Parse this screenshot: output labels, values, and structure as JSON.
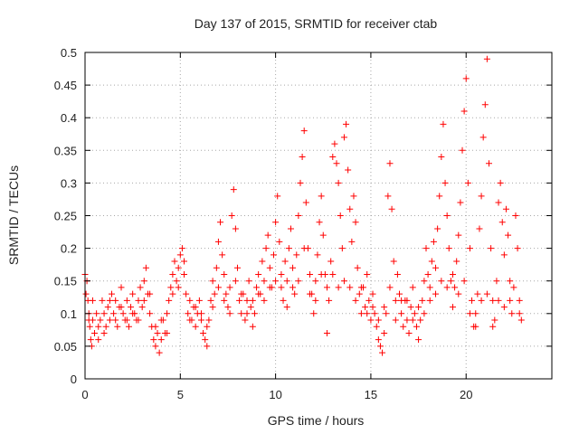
{
  "chart_data": {
    "type": "scatter",
    "title": "Day 137 of 2015, SRMTID for receiver ctab",
    "xlabel": "GPS time / hours",
    "ylabel": "SRMTID / TECUs",
    "xlim": [
      0,
      24.5
    ],
    "ylim": [
      0,
      0.5
    ],
    "xticks": [
      0,
      5,
      10,
      15,
      20
    ],
    "xtick_labels": [
      "0",
      "5",
      "10",
      "15",
      "20"
    ],
    "yticks": [
      0,
      0.05,
      0.1,
      0.15,
      0.2,
      0.25,
      0.3,
      0.35,
      0.4,
      0.45,
      0.5
    ],
    "ytick_labels": [
      "0",
      "0.05",
      "0.1",
      "0.15",
      "0.2",
      "0.25",
      "0.3",
      "0.35",
      "0.4",
      "0.45",
      "0.5"
    ],
    "grid": true,
    "marker": "+",
    "marker_color": "#ff0000",
    "series": [
      {
        "name": "SRMTID",
        "points": [
          [
            0.0,
            0.16
          ],
          [
            0.05,
            0.13
          ],
          [
            0.1,
            0.15
          ],
          [
            0.15,
            0.12
          ],
          [
            0.2,
            0.1
          ],
          [
            0.25,
            0.08
          ],
          [
            0.3,
            0.06
          ],
          [
            0.35,
            0.05
          ],
          [
            0.4,
            0.09
          ],
          [
            0.5,
            0.07
          ],
          [
            0.6,
            0.1
          ],
          [
            0.7,
            0.06
          ],
          [
            0.8,
            0.09
          ],
          [
            0.9,
            0.12
          ],
          [
            1.0,
            0.1
          ],
          [
            1.1,
            0.08
          ],
          [
            1.2,
            0.11
          ],
          [
            1.3,
            0.09
          ],
          [
            1.4,
            0.13
          ],
          [
            1.5,
            0.1
          ],
          [
            1.6,
            0.12
          ],
          [
            1.7,
            0.08
          ],
          [
            1.8,
            0.11
          ],
          [
            1.9,
            0.14
          ],
          [
            2.0,
            0.1
          ],
          [
            2.1,
            0.09
          ],
          [
            2.2,
            0.12
          ],
          [
            2.3,
            0.08
          ],
          [
            2.4,
            0.11
          ],
          [
            2.5,
            0.13
          ],
          [
            2.6,
            0.1
          ],
          [
            2.7,
            0.09
          ],
          [
            2.8,
            0.12
          ],
          [
            2.9,
            0.14
          ],
          [
            3.0,
            0.11
          ],
          [
            3.1,
            0.15
          ],
          [
            3.2,
            0.17
          ],
          [
            3.3,
            0.13
          ],
          [
            3.4,
            0.1
          ],
          [
            3.5,
            0.08
          ],
          [
            3.6,
            0.06
          ],
          [
            3.7,
            0.05
          ],
          [
            3.8,
            0.07
          ],
          [
            3.9,
            0.04
          ],
          [
            4.0,
            0.06
          ],
          [
            4.1,
            0.09
          ],
          [
            4.2,
            0.07
          ],
          [
            4.3,
            0.1
          ],
          [
            4.4,
            0.12
          ],
          [
            4.5,
            0.14
          ],
          [
            4.6,
            0.16
          ],
          [
            4.7,
            0.18
          ],
          [
            4.8,
            0.15
          ],
          [
            4.9,
            0.17
          ],
          [
            5.0,
            0.19
          ],
          [
            5.1,
            0.2
          ],
          [
            5.2,
            0.16
          ],
          [
            5.3,
            0.13
          ],
          [
            5.4,
            0.1
          ],
          [
            5.5,
            0.12
          ],
          [
            5.6,
            0.09
          ],
          [
            5.7,
            0.11
          ],
          [
            5.8,
            0.08
          ],
          [
            5.9,
            0.1
          ],
          [
            6.0,
            0.12
          ],
          [
            6.1,
            0.09
          ],
          [
            6.2,
            0.07
          ],
          [
            6.3,
            0.06
          ],
          [
            6.4,
            0.05
          ],
          [
            6.5,
            0.09
          ],
          [
            6.6,
            0.12
          ],
          [
            6.7,
            0.15
          ],
          [
            6.8,
            0.13
          ],
          [
            6.9,
            0.17
          ],
          [
            7.0,
            0.21
          ],
          [
            7.1,
            0.24
          ],
          [
            7.2,
            0.19
          ],
          [
            7.3,
            0.16
          ],
          [
            7.4,
            0.13
          ],
          [
            7.5,
            0.11
          ],
          [
            7.6,
            0.14
          ],
          [
            7.7,
            0.25
          ],
          [
            7.8,
            0.29
          ],
          [
            7.9,
            0.23
          ],
          [
            8.0,
            0.17
          ],
          [
            8.1,
            0.12
          ],
          [
            8.2,
            0.1
          ],
          [
            8.3,
            0.13
          ],
          [
            8.4,
            0.09
          ],
          [
            8.5,
            0.12
          ],
          [
            8.6,
            0.15
          ],
          [
            8.7,
            0.11
          ],
          [
            8.8,
            0.08
          ],
          [
            8.9,
            0.1
          ],
          [
            9.0,
            0.14
          ],
          [
            9.1,
            0.16
          ],
          [
            9.2,
            0.13
          ],
          [
            9.3,
            0.18
          ],
          [
            9.4,
            0.15
          ],
          [
            9.5,
            0.2
          ],
          [
            9.6,
            0.22
          ],
          [
            9.7,
            0.17
          ],
          [
            9.8,
            0.14
          ],
          [
            9.9,
            0.19
          ],
          [
            10.0,
            0.24
          ],
          [
            10.1,
            0.28
          ],
          [
            10.2,
            0.21
          ],
          [
            10.3,
            0.16
          ],
          [
            10.4,
            0.12
          ],
          [
            10.5,
            0.18
          ],
          [
            10.6,
            0.15
          ],
          [
            10.7,
            0.2
          ],
          [
            10.8,
            0.23
          ],
          [
            10.9,
            0.17
          ],
          [
            11.0,
            0.13
          ],
          [
            11.1,
            0.19
          ],
          [
            11.2,
            0.25
          ],
          [
            11.3,
            0.3
          ],
          [
            11.4,
            0.34
          ],
          [
            11.5,
            0.38
          ],
          [
            11.6,
            0.27
          ],
          [
            11.7,
            0.2
          ],
          [
            11.8,
            0.16
          ],
          [
            11.9,
            0.13
          ],
          [
            12.0,
            0.1
          ],
          [
            12.1,
            0.15
          ],
          [
            12.2,
            0.19
          ],
          [
            12.3,
            0.24
          ],
          [
            12.4,
            0.28
          ],
          [
            12.5,
            0.22
          ],
          [
            12.6,
            0.16
          ],
          [
            12.7,
            0.07
          ],
          [
            12.8,
            0.12
          ],
          [
            12.9,
            0.18
          ],
          [
            13.0,
            0.34
          ],
          [
            13.1,
            0.36
          ],
          [
            13.2,
            0.33
          ],
          [
            13.3,
            0.3
          ],
          [
            13.4,
            0.25
          ],
          [
            13.5,
            0.2
          ],
          [
            13.6,
            0.37
          ],
          [
            13.7,
            0.39
          ],
          [
            13.8,
            0.32
          ],
          [
            13.9,
            0.26
          ],
          [
            14.0,
            0.21
          ],
          [
            14.1,
            0.28
          ],
          [
            14.2,
            0.24
          ],
          [
            14.3,
            0.17
          ],
          [
            14.4,
            0.13
          ],
          [
            14.5,
            0.1
          ],
          [
            14.6,
            0.14
          ],
          [
            14.7,
            0.11
          ],
          [
            14.8,
            0.16
          ],
          [
            14.9,
            0.12
          ],
          [
            15.0,
            0.09
          ],
          [
            15.1,
            0.13
          ],
          [
            15.2,
            0.1
          ],
          [
            15.3,
            0.08
          ],
          [
            15.4,
            0.06
          ],
          [
            15.5,
            0.05
          ],
          [
            15.6,
            0.04
          ],
          [
            15.7,
            0.07
          ],
          [
            15.8,
            0.1
          ],
          [
            15.9,
            0.28
          ],
          [
            16.0,
            0.33
          ],
          [
            16.1,
            0.26
          ],
          [
            16.2,
            0.18
          ],
          [
            16.3,
            0.12
          ],
          [
            16.4,
            0.16
          ],
          [
            16.5,
            0.13
          ],
          [
            16.6,
            0.1
          ],
          [
            16.7,
            0.08
          ],
          [
            16.8,
            0.12
          ],
          [
            16.9,
            0.09
          ],
          [
            17.0,
            0.07
          ],
          [
            17.1,
            0.11
          ],
          [
            17.2,
            0.14
          ],
          [
            17.3,
            0.1
          ],
          [
            17.4,
            0.08
          ],
          [
            17.5,
            0.06
          ],
          [
            17.6,
            0.09
          ],
          [
            17.7,
            0.12
          ],
          [
            17.8,
            0.15
          ],
          [
            17.9,
            0.2
          ],
          [
            18.0,
            0.16
          ],
          [
            18.1,
            0.12
          ],
          [
            18.2,
            0.18
          ],
          [
            18.3,
            0.21
          ],
          [
            18.4,
            0.17
          ],
          [
            18.5,
            0.23
          ],
          [
            18.6,
            0.28
          ],
          [
            18.7,
            0.34
          ],
          [
            18.8,
            0.39
          ],
          [
            18.9,
            0.3
          ],
          [
            19.0,
            0.25
          ],
          [
            19.1,
            0.2
          ],
          [
            19.2,
            0.15
          ],
          [
            19.3,
            0.11
          ],
          [
            19.4,
            0.14
          ],
          [
            19.5,
            0.18
          ],
          [
            19.6,
            0.22
          ],
          [
            19.7,
            0.27
          ],
          [
            19.8,
            0.35
          ],
          [
            19.9,
            0.41
          ],
          [
            20.0,
            0.46
          ],
          [
            20.1,
            0.3
          ],
          [
            20.2,
            0.2
          ],
          [
            20.3,
            0.12
          ],
          [
            20.4,
            0.08
          ],
          [
            20.5,
            0.1
          ],
          [
            20.6,
            0.13
          ],
          [
            20.7,
            0.23
          ],
          [
            20.8,
            0.28
          ],
          [
            20.9,
            0.37
          ],
          [
            21.0,
            0.42
          ],
          [
            21.1,
            0.49
          ],
          [
            21.2,
            0.33
          ],
          [
            21.3,
            0.2
          ],
          [
            21.4,
            0.12
          ],
          [
            21.5,
            0.09
          ],
          [
            21.6,
            0.15
          ],
          [
            21.7,
            0.27
          ],
          [
            21.8,
            0.3
          ],
          [
            21.9,
            0.24
          ],
          [
            22.0,
            0.19
          ],
          [
            22.1,
            0.26
          ],
          [
            22.2,
            0.22
          ],
          [
            22.3,
            0.15
          ],
          [
            22.4,
            0.1
          ],
          [
            22.5,
            0.14
          ],
          [
            22.6,
            0.25
          ],
          [
            22.7,
            0.2
          ],
          [
            22.8,
            0.12
          ],
          [
            22.9,
            0.09
          ],
          [
            0.2,
            0.09
          ],
          [
            0.4,
            0.12
          ],
          [
            0.7,
            0.08
          ],
          [
            1.0,
            0.07
          ],
          [
            1.3,
            0.12
          ],
          [
            1.6,
            0.09
          ],
          [
            1.9,
            0.11
          ],
          [
            2.2,
            0.09
          ],
          [
            2.5,
            0.1
          ],
          [
            2.8,
            0.09
          ],
          [
            3.1,
            0.12
          ],
          [
            3.4,
            0.13
          ],
          [
            3.7,
            0.08
          ],
          [
            4.0,
            0.09
          ],
          [
            4.3,
            0.07
          ],
          [
            4.6,
            0.13
          ],
          [
            4.9,
            0.14
          ],
          [
            5.2,
            0.18
          ],
          [
            5.5,
            0.09
          ],
          [
            5.8,
            0.11
          ],
          [
            6.1,
            0.1
          ],
          [
            6.4,
            0.08
          ],
          [
            6.7,
            0.11
          ],
          [
            7.0,
            0.14
          ],
          [
            7.3,
            0.12
          ],
          [
            7.6,
            0.1
          ],
          [
            7.9,
            0.15
          ],
          [
            8.2,
            0.13
          ],
          [
            8.5,
            0.1
          ],
          [
            8.8,
            0.12
          ],
          [
            9.1,
            0.13
          ],
          [
            9.4,
            0.12
          ],
          [
            9.7,
            0.14
          ],
          [
            10.0,
            0.15
          ],
          [
            10.3,
            0.14
          ],
          [
            10.6,
            0.11
          ],
          [
            10.9,
            0.14
          ],
          [
            11.2,
            0.15
          ],
          [
            11.5,
            0.2
          ],
          [
            11.8,
            0.13
          ],
          [
            12.1,
            0.12
          ],
          [
            12.4,
            0.16
          ],
          [
            12.7,
            0.14
          ],
          [
            13.0,
            0.16
          ],
          [
            13.3,
            0.14
          ],
          [
            13.6,
            0.15
          ],
          [
            13.9,
            0.14
          ],
          [
            14.2,
            0.12
          ],
          [
            14.5,
            0.14
          ],
          [
            14.8,
            0.1
          ],
          [
            15.1,
            0.11
          ],
          [
            15.4,
            0.09
          ],
          [
            15.7,
            0.11
          ],
          [
            16.0,
            0.14
          ],
          [
            16.3,
            0.09
          ],
          [
            16.6,
            0.12
          ],
          [
            16.9,
            0.12
          ],
          [
            17.2,
            0.09
          ],
          [
            17.5,
            0.11
          ],
          [
            17.8,
            0.1
          ],
          [
            18.1,
            0.14
          ],
          [
            18.4,
            0.13
          ],
          [
            18.7,
            0.15
          ],
          [
            19.0,
            0.14
          ],
          [
            19.3,
            0.16
          ],
          [
            19.6,
            0.13
          ],
          [
            19.9,
            0.15
          ],
          [
            20.2,
            0.1
          ],
          [
            20.5,
            0.08
          ],
          [
            20.8,
            0.12
          ],
          [
            21.1,
            0.13
          ],
          [
            21.4,
            0.08
          ],
          [
            21.7,
            0.12
          ],
          [
            22.0,
            0.11
          ],
          [
            22.3,
            0.12
          ],
          [
            22.8,
            0.1
          ]
        ]
      }
    ]
  }
}
